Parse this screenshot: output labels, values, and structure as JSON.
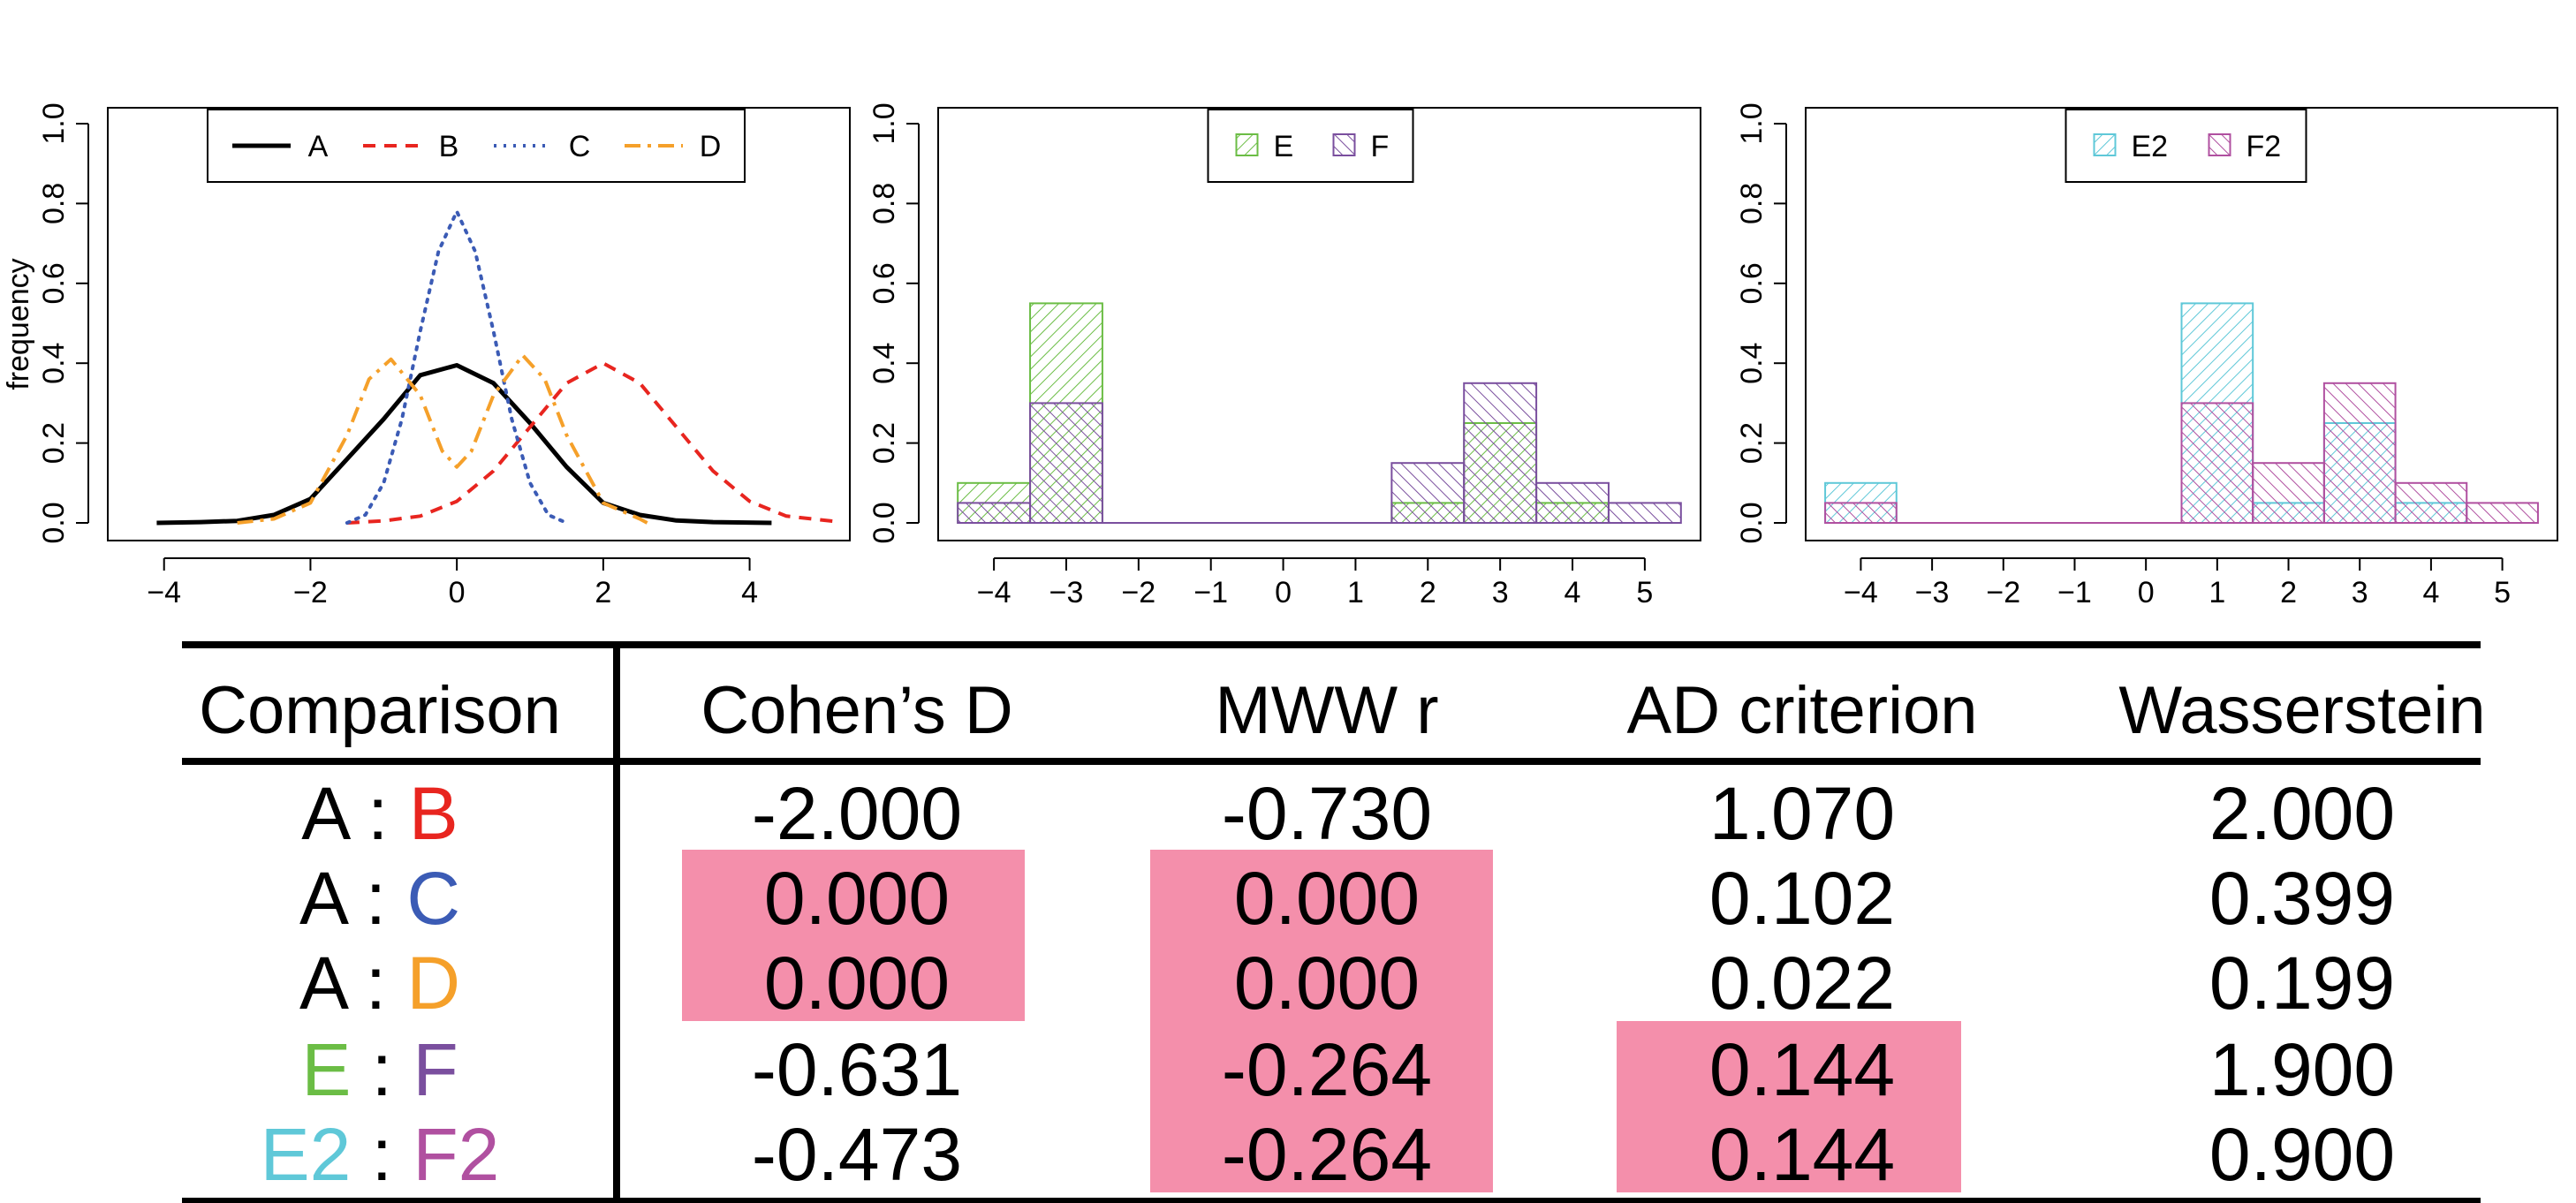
{
  "chart_data": [
    {
      "type": "line",
      "ylabel": "frequency",
      "xlim": [
        -4.6,
        5.2
      ],
      "ylim": [
        0,
        1.0
      ],
      "xticks": [
        "−4",
        "−2",
        "0",
        "2",
        "4"
      ],
      "yticks": [
        "0.0",
        "0.2",
        "0.4",
        "0.6",
        "0.8",
        "1.0"
      ],
      "legend_position": "top-center",
      "series": [
        {
          "name": "A",
          "color": "#000000",
          "style": "solid",
          "x": [
            -4.1,
            -3.5,
            -3,
            -2.5,
            -2,
            -1.5,
            -1,
            -0.5,
            0,
            0.5,
            1,
            1.5,
            2,
            2.5,
            3,
            3.5,
            4.3
          ],
          "y": [
            0.0,
            0.002,
            0.005,
            0.02,
            0.06,
            0.16,
            0.26,
            0.37,
            0.395,
            0.35,
            0.25,
            0.14,
            0.05,
            0.02,
            0.006,
            0.002,
            0.0
          ]
        },
        {
          "name": "B",
          "color": "#e8251f",
          "style": "dashed",
          "x": [
            -1.5,
            -1,
            -0.5,
            0,
            0.5,
            1,
            1.5,
            2,
            2.5,
            3,
            3.5,
            4,
            4.5,
            5.2
          ],
          "y": [
            0.0,
            0.005,
            0.017,
            0.054,
            0.13,
            0.24,
            0.35,
            0.4,
            0.35,
            0.24,
            0.13,
            0.054,
            0.017,
            0.003
          ]
        },
        {
          "name": "C",
          "color": "#3b5bb5",
          "style": "dotted",
          "x": [
            -1.5,
            -1.25,
            -1,
            -0.75,
            -0.5,
            -0.25,
            0,
            0.25,
            0.5,
            0.75,
            1,
            1.25,
            1.5
          ],
          "y": [
            0.0,
            0.02,
            0.1,
            0.26,
            0.48,
            0.68,
            0.78,
            0.68,
            0.48,
            0.26,
            0.1,
            0.02,
            0.0
          ]
        },
        {
          "name": "D",
          "color": "#f5a02a",
          "style": "dashdot",
          "x": [
            -3,
            -2.5,
            -2,
            -1.5,
            -1.2,
            -0.9,
            -0.5,
            -0.2,
            0,
            0.2,
            0.5,
            0.9,
            1.2,
            1.5,
            2,
            2.5,
            2.6
          ],
          "y": [
            0.0,
            0.01,
            0.05,
            0.22,
            0.36,
            0.41,
            0.32,
            0.18,
            0.14,
            0.18,
            0.32,
            0.42,
            0.36,
            0.22,
            0.05,
            0.01,
            0.0
          ]
        }
      ]
    },
    {
      "type": "bar",
      "histogram": true,
      "xlim": [
        -4.6,
        5.6
      ],
      "ylim": [
        0,
        1.0
      ],
      "xticks": [
        "−4",
        "−3",
        "−2",
        "−1",
        "0",
        "1",
        "2",
        "3",
        "4",
        "5"
      ],
      "yticks": [
        "0.0",
        "0.2",
        "0.4",
        "0.6",
        "0.8",
        "1.0"
      ],
      "bin_edges": [
        -4.5,
        -3.5,
        -2.5,
        -1.5,
        -0.5,
        0.5,
        1.5,
        2.5,
        3.5,
        4.5,
        5.5
      ],
      "legend_position": "top-center",
      "series": [
        {
          "name": "E",
          "color": "#6bbd45",
          "values": [
            0.1,
            0.55,
            0,
            0,
            0,
            0,
            0.05,
            0.25,
            0.05,
            0
          ]
        },
        {
          "name": "F",
          "color": "#7a4f9e",
          "values": [
            0.05,
            0.3,
            0,
            0,
            0,
            0,
            0.15,
            0.35,
            0.1,
            0.05
          ]
        }
      ]
    },
    {
      "type": "bar",
      "histogram": true,
      "xlim": [
        -4.6,
        5.6
      ],
      "ylim": [
        0,
        1.0
      ],
      "xticks": [
        "−4",
        "−3",
        "−2",
        "−1",
        "0",
        "1",
        "2",
        "3",
        "4",
        "5"
      ],
      "yticks": [
        "0.0",
        "0.2",
        "0.4",
        "0.6",
        "0.8",
        "1.0"
      ],
      "bin_edges": [
        -4.5,
        -3.5,
        -2.5,
        -1.5,
        -0.5,
        0.5,
        1.5,
        2.5,
        3.5,
        4.5,
        5.5
      ],
      "legend_position": "top-center",
      "series": [
        {
          "name": "E2",
          "color": "#5fc8d8",
          "values": [
            0.1,
            0,
            0,
            0,
            0,
            0.55,
            0.05,
            0.25,
            0.05,
            0
          ]
        },
        {
          "name": "F2",
          "color": "#b050a0",
          "values": [
            0.05,
            0,
            0,
            0,
            0,
            0.3,
            0.15,
            0.35,
            0.1,
            0.05
          ]
        }
      ]
    },
    {
      "type": "table",
      "columns": [
        "Comparison",
        "Cohen’s D",
        "MWW r",
        "AD criterion",
        "Wasserstein"
      ],
      "highlight_color": "#f48fab",
      "rows": [
        {
          "left": "A",
          "right": "B",
          "left_color": "#000000",
          "right_color": "#e8251f",
          "values": [
            "-2.000",
            "-0.730",
            "1.070",
            "2.000"
          ],
          "highlight": [
            false,
            false,
            false,
            false
          ]
        },
        {
          "left": "A",
          "right": "C",
          "left_color": "#000000",
          "right_color": "#3b5bb5",
          "values": [
            "0.000",
            "0.000",
            "0.102",
            "0.399"
          ],
          "highlight": [
            true,
            true,
            false,
            false
          ]
        },
        {
          "left": "A",
          "right": "D",
          "left_color": "#000000",
          "right_color": "#f5a02a",
          "values": [
            "0.000",
            "0.000",
            "0.022",
            "0.199"
          ],
          "highlight": [
            true,
            true,
            false,
            false
          ]
        },
        {
          "left": "E",
          "right": "F",
          "left_color": "#6bbd45",
          "right_color": "#7a4f9e",
          "values": [
            "-0.631",
            "-0.264",
            "0.144",
            "1.900"
          ],
          "highlight": [
            false,
            true,
            true,
            false
          ]
        },
        {
          "left": "E2",
          "right": "F2",
          "left_color": "#5fc8d8",
          "right_color": "#b050a0",
          "values": [
            "-0.473",
            "-0.264",
            "0.144",
            "0.900"
          ],
          "highlight": [
            false,
            true,
            true,
            false
          ]
        }
      ]
    }
  ]
}
